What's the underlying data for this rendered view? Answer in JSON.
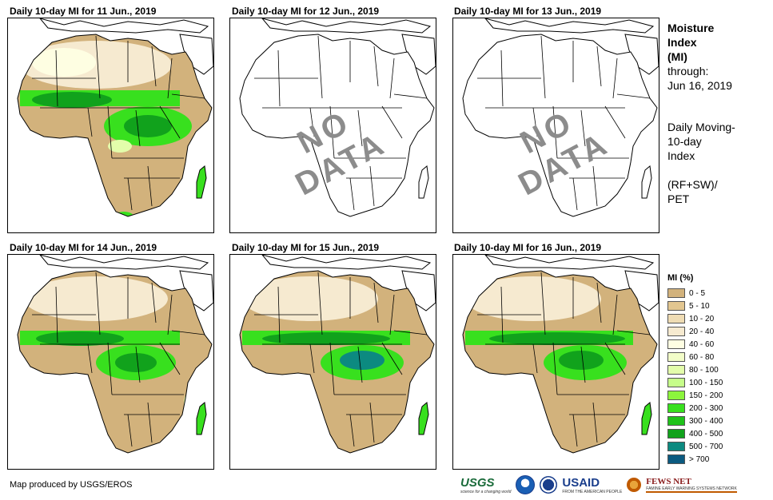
{
  "panels": [
    {
      "title": "Daily 10-day MI for 11 Jun., 2019",
      "has_data": true
    },
    {
      "title": "Daily 10-day MI for 12 Jun., 2019",
      "has_data": false,
      "overlay": "NO DATA"
    },
    {
      "title": "Daily 10-day MI for 13 Jun., 2019",
      "has_data": false,
      "overlay": "NO DATA"
    },
    {
      "title": "Daily 10-day MI for 14 Jun., 2019",
      "has_data": true
    },
    {
      "title": "Daily 10-day MI for 15 Jun., 2019",
      "has_data": true
    },
    {
      "title": "Daily 10-day MI for 16 Jun., 2019",
      "has_data": true
    }
  ],
  "side": {
    "title_lines": [
      "Moisture",
      "Index",
      "(MI)"
    ],
    "through_label": "through:",
    "through_date": "Jun 16, 2019",
    "desc_lines": [
      "Daily Moving-",
      "10-day",
      "Index"
    ],
    "formula_lines": [
      "(RF+SW)/",
      "PET"
    ]
  },
  "legend": {
    "title": "MI (%)",
    "items": [
      {
        "label": "0 - 5",
        "color": "#d2b27c"
      },
      {
        "label": "5 - 10",
        "color": "#e2c690"
      },
      {
        "label": "10 - 20",
        "color": "#efdcb4"
      },
      {
        "label": "20 - 40",
        "color": "#f6ead0"
      },
      {
        "label": "40 - 60",
        "color": "#fefee2"
      },
      {
        "label": "60 - 80",
        "color": "#f2fdc8"
      },
      {
        "label": "80 - 100",
        "color": "#e3fdab"
      },
      {
        "label": "100 - 150",
        "color": "#c6fd8a"
      },
      {
        "label": "150 - 200",
        "color": "#8cf53c"
      },
      {
        "label": "200 - 300",
        "color": "#38e01e"
      },
      {
        "label": "300 - 400",
        "color": "#1fc21a"
      },
      {
        "label": "400 - 500",
        "color": "#11a21c"
      },
      {
        "label": "500 - 700",
        "color": "#0c8a80"
      },
      {
        "label": "> 700",
        "color": "#0b5a80"
      }
    ]
  },
  "footer": {
    "credit": "Map produced by USGS/EROS",
    "logos": {
      "usgs": "USGS",
      "usgs_tagline": "science for a changing world",
      "usaid": "USAID",
      "usaid_tagline": "FROM THE AMERICAN PEOPLE",
      "fews": "FEWS NET",
      "fews_tagline": "FAMINE EARLY WARNING SYSTEMS NETWORK"
    }
  }
}
